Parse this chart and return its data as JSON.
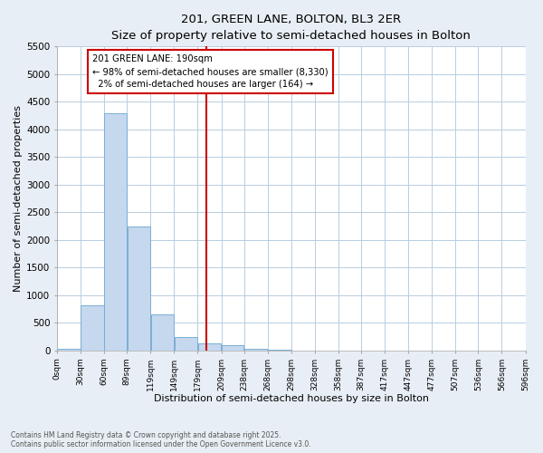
{
  "title": "201, GREEN LANE, BOLTON, BL3 2ER",
  "subtitle": "Size of property relative to semi-detached houses in Bolton",
  "xlabel": "Distribution of semi-detached houses by size in Bolton",
  "ylabel": "Number of semi-detached properties",
  "bin_edges": [
    0,
    30,
    60,
    89,
    119,
    149,
    179,
    209,
    238,
    268,
    298,
    328,
    358,
    387,
    417,
    447,
    477,
    507,
    536,
    566,
    596
  ],
  "bar_heights": [
    30,
    820,
    4300,
    2240,
    660,
    250,
    130,
    90,
    30,
    10,
    5,
    2,
    1,
    0,
    0,
    0,
    0,
    0,
    0,
    0
  ],
  "bar_color": "#c5d8ee",
  "bar_edge_color": "#7aaed4",
  "vline_x": 190,
  "vline_color": "#cc0000",
  "ylim": [
    0,
    5500
  ],
  "yticks": [
    0,
    500,
    1000,
    1500,
    2000,
    2500,
    3000,
    3500,
    4000,
    4500,
    5000,
    5500
  ],
  "annotation_title": "201 GREEN LANE: 190sqm",
  "annotation_line1": "← 98% of semi-detached houses are smaller (8,330)",
  "annotation_line2": "  2% of semi-detached houses are larger (164) →",
  "annotation_box_color": "#cc0000",
  "footer_line1": "Contains HM Land Registry data © Crown copyright and database right 2025.",
  "footer_line2": "Contains public sector information licensed under the Open Government Licence v3.0.",
  "bg_color": "#e8eef5",
  "plot_bg_color": "#ffffff",
  "grid_color": "#b8cde0"
}
